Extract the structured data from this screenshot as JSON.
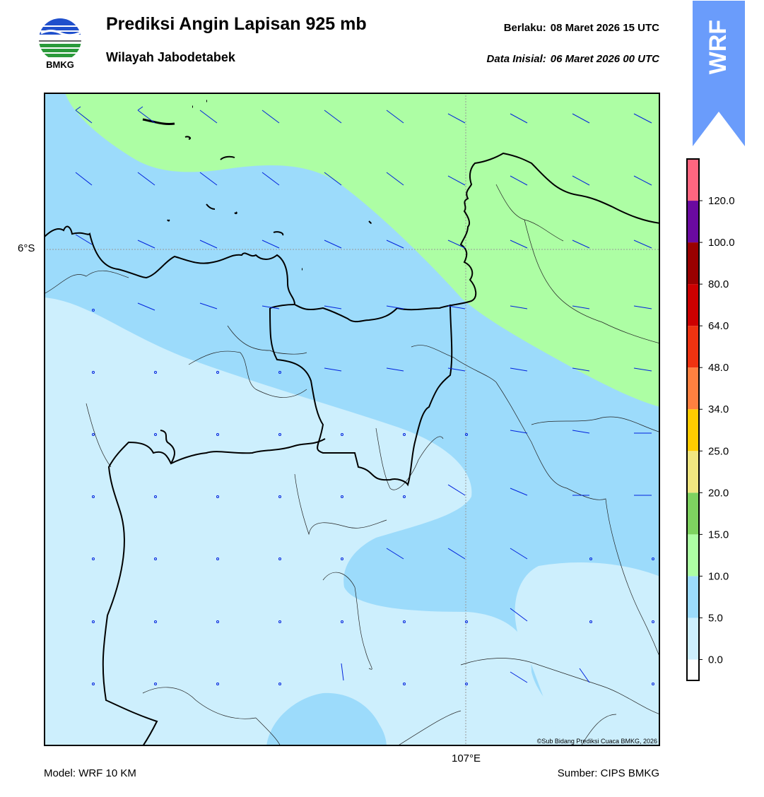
{
  "header": {
    "title": "Prediksi Angin Lapisan 925 mb",
    "subtitle": "Wilayah Jabodetabek",
    "valid_label": "Berlaku:",
    "valid_value": "08 Maret 2026 15 UTC",
    "init_label": "Data Inisial:",
    "init_value": "06 Maret 2026 00 UTC"
  },
  "logo": {
    "text": "BMKG",
    "icon": "bmkg-logo"
  },
  "badge": {
    "text": "WRF",
    "color": "#6a9cfb"
  },
  "map": {
    "lat_label": "6°S",
    "lon_label": "107°E",
    "credit": "©Sub Bidang Prediksi Cuaca BMKG, 2026",
    "colors": {
      "calm": "#cdeffd",
      "band_5_10": "#9cdbfb",
      "band_10_15": "#adfea4",
      "barb": "#0022dd",
      "coast": "#000000"
    }
  },
  "colorbar": {
    "ticks": [
      "0.0",
      "5.0",
      "10.0",
      "15.0",
      "20.0",
      "25.0",
      "34.0",
      "48.0",
      "64.0",
      "80.0",
      "100.0",
      "120.0"
    ],
    "colors": [
      "#ffffff",
      "#cdeffd",
      "#9cdbfb",
      "#adfea4",
      "#7ed360",
      "#f0e680",
      "#ffcc00",
      "#ff8040",
      "#ee3311",
      "#cc0000",
      "#990000",
      "#6a0aa0",
      "#ff6680"
    ]
  },
  "footer": {
    "model": "Model: WRF 10 KM",
    "source": "Sumber: CIPS BMKG"
  }
}
